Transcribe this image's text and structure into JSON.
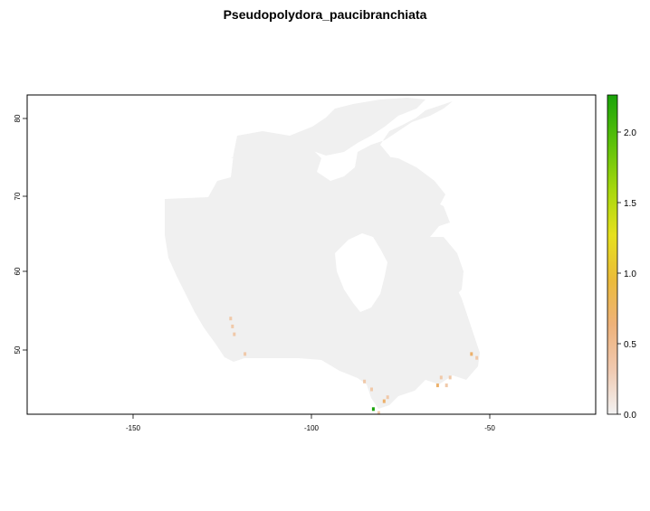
{
  "title": "Pseudopolydora_paucibranchiata",
  "map": {
    "x_ticks": [
      "-150",
      "-100",
      "-50"
    ],
    "y_ticks": [
      "50",
      "60",
      "70",
      "80"
    ],
    "land_color": "#f0f0f0",
    "frame_color": "#000000",
    "hotspots": [
      {
        "lon": -122.5,
        "lat": 54.0,
        "value": 0.3
      },
      {
        "lon": -122.0,
        "lat": 53.0,
        "value": 0.4
      },
      {
        "lon": -121.5,
        "lat": 52.0,
        "value": 0.25
      },
      {
        "lon": -118.5,
        "lat": 49.5,
        "value": 0.3
      },
      {
        "lon": -85.0,
        "lat": 46.0,
        "value": 0.4
      },
      {
        "lon": -83.0,
        "lat": 45.0,
        "value": 0.3
      },
      {
        "lon": -82.5,
        "lat": 42.5,
        "value": 2.1
      },
      {
        "lon": -81.0,
        "lat": 42.0,
        "value": 0.3
      },
      {
        "lon": -79.5,
        "lat": 43.5,
        "value": 0.5
      },
      {
        "lon": -78.5,
        "lat": 44.0,
        "value": 0.35
      },
      {
        "lon": -64.5,
        "lat": 45.5,
        "value": 0.5
      },
      {
        "lon": -63.5,
        "lat": 46.5,
        "value": 0.35
      },
      {
        "lon": -62.0,
        "lat": 45.5,
        "value": 0.45
      },
      {
        "lon": -61.0,
        "lat": 46.5,
        "value": 0.3
      },
      {
        "lon": -55.0,
        "lat": 49.5,
        "value": 0.5
      },
      {
        "lon": -53.5,
        "lat": 49.0,
        "value": 0.35
      }
    ]
  },
  "legend": {
    "ticks": [
      "0.0",
      "0.5",
      "1.0",
      "1.5",
      "2.0"
    ],
    "colors": [
      "#f2f2f2",
      "#f0c9a9",
      "#ecb06a",
      "#e8c32e",
      "#e6e01e",
      "#a8d80e",
      "#5cc10a",
      "#1aa30a"
    ]
  }
}
